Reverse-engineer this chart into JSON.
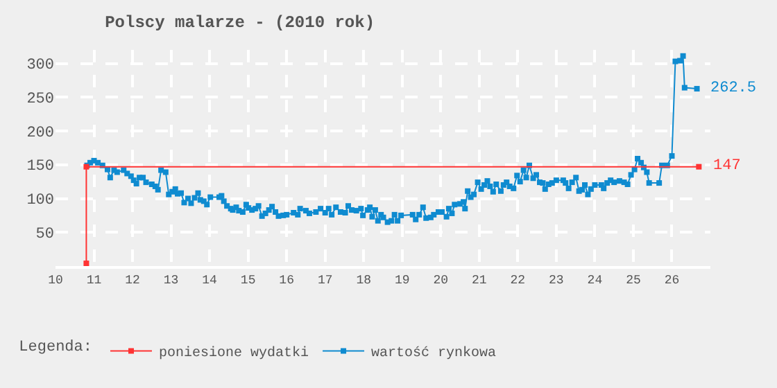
{
  "chart_data": {
    "type": "line",
    "title": "Polscy malarze - (2010 rok)",
    "legend_title": "Legenda:",
    "xlim": [
      10,
      27
    ],
    "xticks": [
      10,
      11,
      12,
      13,
      14,
      15,
      16,
      17,
      18,
      19,
      20,
      21,
      22,
      23,
      24,
      25,
      26
    ],
    "ylim": [
      0,
      320
    ],
    "yticks": [
      {
        "value": 0,
        "label": null
      },
      50,
      100,
      150,
      200,
      250,
      300
    ],
    "grid": true,
    "legend": "bottom",
    "marker": "square",
    "series": [
      {
        "name": "poniesione wydatki",
        "color": "#ff3333",
        "x": [
          10.8,
          10.8,
          26.7
        ],
        "values": [
          4,
          147,
          147
        ]
      },
      {
        "name": "wartość rynkowa",
        "color": "#0f8bd0",
        "x": [
          10.82,
          10.9,
          11.0,
          11.1,
          11.22,
          11.35,
          11.42,
          11.52,
          11.6,
          11.77,
          11.86,
          11.96,
          12.03,
          12.1,
          12.18,
          12.27,
          12.35,
          12.5,
          12.59,
          12.66,
          12.74,
          12.86,
          12.94,
          13.03,
          13.11,
          13.17,
          13.26,
          13.34,
          13.44,
          13.52,
          13.61,
          13.7,
          13.76,
          13.85,
          13.93,
          14.02,
          14.25,
          14.31,
          14.37,
          14.45,
          14.55,
          14.6,
          14.69,
          14.76,
          14.86,
          14.95,
          15.01,
          15.1,
          15.19,
          15.27,
          15.36,
          15.45,
          15.54,
          15.62,
          15.71,
          15.79,
          15.91,
          16.0,
          16.18,
          16.29,
          16.35,
          16.5,
          16.59,
          16.76,
          16.88,
          17.0,
          17.09,
          17.17,
          17.28,
          17.4,
          17.52,
          17.6,
          17.69,
          17.81,
          17.93,
          17.98,
          18.1,
          18.16,
          18.22,
          18.3,
          18.37,
          18.45,
          18.51,
          18.62,
          18.72,
          18.8,
          18.88,
          18.97,
          19.27,
          19.35,
          19.44,
          19.54,
          19.62,
          19.74,
          19.82,
          19.94,
          20.03,
          20.15,
          20.21,
          20.29,
          20.36,
          20.5,
          20.59,
          20.63,
          20.7,
          20.78,
          20.86,
          20.96,
          21.05,
          21.13,
          21.21,
          21.28,
          21.36,
          21.44,
          21.56,
          21.63,
          21.71,
          21.79,
          21.89,
          21.98,
          22.06,
          22.15,
          22.22,
          22.3,
          22.4,
          22.48,
          22.57,
          22.65,
          22.71,
          22.8,
          22.89,
          23.0,
          23.18,
          23.24,
          23.32,
          23.41,
          23.51,
          23.59,
          23.67,
          23.74,
          23.82,
          23.9,
          24.0,
          24.17,
          24.23,
          24.32,
          24.41,
          24.5,
          24.64,
          24.76,
          24.85,
          24.94,
          25.03,
          25.11,
          25.2,
          25.27,
          25.35,
          25.41,
          25.67,
          25.74,
          25.88,
          26.0,
          26.09,
          26.21,
          26.29,
          26.33,
          26.65
        ],
        "values": [
          149,
          153,
          156,
          153,
          149,
          143,
          131,
          142,
          139,
          142,
          137,
          133,
          127,
          122,
          131,
          131,
          124,
          121,
          118,
          113,
          142,
          139,
          106,
          110,
          114,
          107,
          108,
          94,
          100,
          93,
          101,
          108,
          98,
          96,
          91,
          102,
          102,
          104,
          96,
          89,
          85,
          83,
          87,
          82,
          80,
          91,
          86,
          83,
          85,
          89,
          74,
          78,
          83,
          88,
          80,
          74,
          75,
          76,
          79,
          76,
          85,
          82,
          78,
          80,
          85,
          79,
          85,
          76,
          87,
          80,
          79,
          89,
          83,
          82,
          85,
          75,
          83,
          87,
          73,
          83,
          67,
          76,
          72,
          65,
          67,
          76,
          67,
          75,
          76,
          69,
          76,
          87,
          71,
          72,
          76,
          80,
          80,
          73,
          85,
          78,
          91,
          92,
          95,
          85,
          111,
          102,
          106,
          124,
          114,
          120,
          126,
          118,
          110,
          121,
          111,
          120,
          124,
          118,
          115,
          134,
          125,
          142,
          131,
          149,
          130,
          135,
          124,
          123,
          114,
          121,
          123,
          127,
          127,
          123,
          115,
          124,
          131,
          111,
          113,
          120,
          106,
          114,
          120,
          120,
          115,
          123,
          127,
          124,
          126,
          124,
          121,
          135,
          143,
          159,
          153,
          146,
          139,
          123,
          123,
          149,
          149,
          163,
          303,
          304,
          311,
          264,
          262.5
        ]
      }
    ],
    "annotations": [
      {
        "text": "262.5",
        "x": 26.65,
        "y": 262.5
      },
      {
        "text": "147",
        "x": 26.7,
        "y": 147
      }
    ]
  }
}
